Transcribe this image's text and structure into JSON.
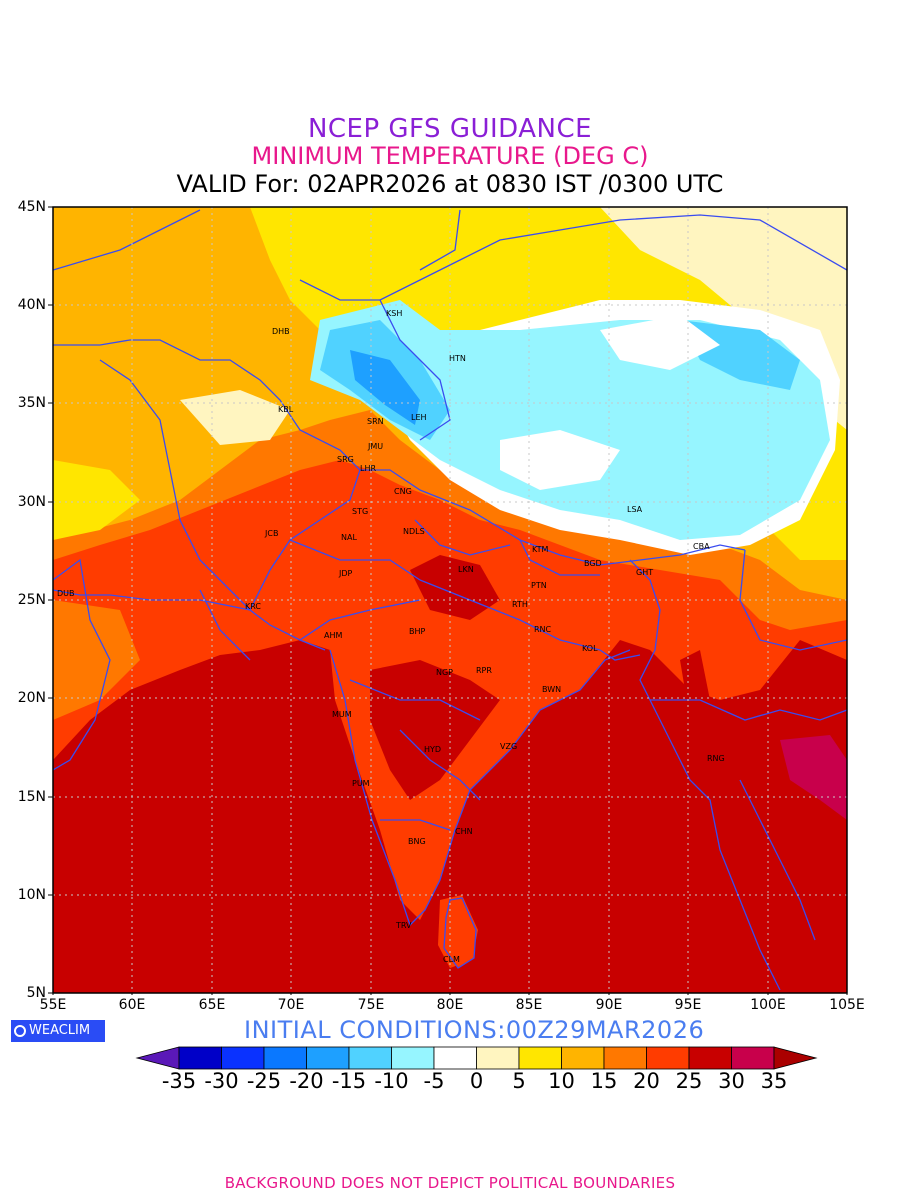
{
  "title": "NCEP GFS GUIDANCE",
  "subtitle": "MINIMUM TEMPERATURE (DEG C)",
  "valid_line": "VALID For: 02APR2026 at 0830 IST /0300 UTC",
  "initial_conditions": "INITIAL CONDITIONS:00Z29MAR2026",
  "logo_text": "WEACLIM",
  "footer": "BACKGROUND DOES NOT DEPICT POLITICAL BOUNDARIES",
  "lat_labels": [
    "45N",
    "40N",
    "35N",
    "30N",
    "25N",
    "20N",
    "15N",
    "10N",
    "5N"
  ],
  "lon_labels": [
    "55E",
    "60E",
    "65E",
    "70E",
    "75E",
    "80E",
    "85E",
    "90E",
    "95E",
    "100E",
    "105E"
  ],
  "colorbar": {
    "labels": [
      "-35",
      "-30",
      "-25",
      "-20",
      "-15",
      "-10",
      "-5",
      "0",
      "5",
      "10",
      "15",
      "20",
      "25",
      "30",
      "35"
    ],
    "colors": [
      "#5a18b8",
      "#0000c8",
      "#0a32ff",
      "#0a78ff",
      "#1ea0ff",
      "#50d2ff",
      "#96f5ff",
      "#ffffff",
      "#fff5c0",
      "#ffe600",
      "#ffb400",
      "#ff7800",
      "#ff3c00",
      "#c80000",
      "#c8004b",
      "#aa0000"
    ]
  },
  "cities": [
    {
      "name": "KSH"
    },
    {
      "name": "DHB"
    },
    {
      "name": "HTN"
    },
    {
      "name": "KBL"
    },
    {
      "name": "SRN"
    },
    {
      "name": "LEH"
    },
    {
      "name": "JMU"
    },
    {
      "name": "SRG"
    },
    {
      "name": "LHR"
    },
    {
      "name": "CNG"
    },
    {
      "name": "STG"
    },
    {
      "name": "JCB"
    },
    {
      "name": "NAL"
    },
    {
      "name": "NDLS"
    },
    {
      "name": "LSA"
    },
    {
      "name": "KTM"
    },
    {
      "name": "CBA"
    },
    {
      "name": "BGD"
    },
    {
      "name": "GHT"
    },
    {
      "name": "LKN"
    },
    {
      "name": "JDP"
    },
    {
      "name": "PTN"
    },
    {
      "name": "DUB"
    },
    {
      "name": "KRC"
    },
    {
      "name": "RTH"
    },
    {
      "name": "AHM"
    },
    {
      "name": "BHP"
    },
    {
      "name": "RNC"
    },
    {
      "name": "KOL"
    },
    {
      "name": "NGP"
    },
    {
      "name": "RPR"
    },
    {
      "name": "BWN"
    },
    {
      "name": "MUM"
    },
    {
      "name": "HYD"
    },
    {
      "name": "VZG"
    },
    {
      "name": "RNG"
    },
    {
      "name": "PUM"
    },
    {
      "name": "CHN"
    },
    {
      "name": "BNG"
    },
    {
      "name": "TRV"
    },
    {
      "name": "CLM"
    }
  ]
}
